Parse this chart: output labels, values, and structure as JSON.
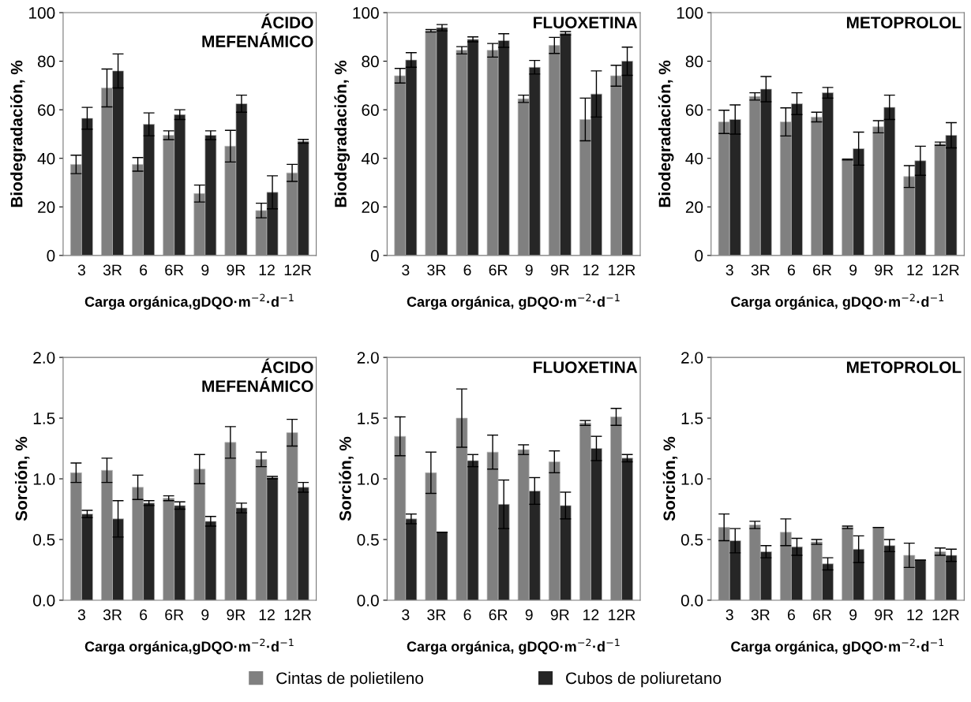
{
  "chart_data": [
    {
      "type": "bar",
      "title": "ÁCIDO\nMEFENÁMICO",
      "ylabel": "Biodegradación, %",
      "xlabel": "Carga orgánica,gDQO·m$^{−2}$·d$^{−1}$",
      "categories": [
        "3",
        "3R",
        "6",
        "6R",
        "9",
        "9R",
        "12",
        "12R"
      ],
      "ylim": [
        0,
        100
      ],
      "yticks": [
        0,
        20,
        40,
        60,
        80,
        100
      ],
      "grid": false,
      "legend": "bottom",
      "series": [
        {
          "name": "Cintas de polietileno",
          "color": "#808080",
          "values": [
            37.5,
            69,
            37.5,
            49.5,
            25.5,
            45,
            18.5,
            34
          ],
          "errors": [
            3.8,
            7.8,
            2.8,
            1.8,
            3.5,
            6.5,
            3,
            3.5
          ]
        },
        {
          "name": "Cubos de poliuretano",
          "color": "#262626",
          "values": [
            56.5,
            76,
            54,
            58,
            49.5,
            62.5,
            26,
            47
          ],
          "errors": [
            4.5,
            7,
            4.7,
            2,
            1.8,
            3.5,
            6.8,
            0.8
          ]
        }
      ]
    },
    {
      "type": "bar",
      "title": "FLUOXETINA",
      "ylabel": "Biodegradación, %",
      "xlabel": "Carga orgánica, gDQO·m$^{−2}$·d$^{−1}$",
      "categories": [
        "3",
        "3R",
        "6",
        "6R",
        "9",
        "9R",
        "12",
        "12R"
      ],
      "ylim": [
        0,
        100
      ],
      "yticks": [
        0,
        20,
        40,
        60,
        80,
        100
      ],
      "grid": false,
      "series": [
        {
          "color": "#808080",
          "values": [
            74,
            92.5,
            84.5,
            84.5,
            64.5,
            86.5,
            56,
            74
          ],
          "errors": [
            3,
            0.5,
            1.5,
            2.8,
            1.5,
            3.3,
            8.8,
            4.3
          ]
        },
        {
          "color": "#262626",
          "values": [
            80.5,
            93.8,
            89,
            88.5,
            77.5,
            91.5,
            66.5,
            80
          ],
          "errors": [
            3,
            1.3,
            1,
            2.8,
            2.8,
            0.7,
            9.5,
            5.8
          ]
        }
      ]
    },
    {
      "type": "bar",
      "title": "METOPROLOL",
      "ylabel": "Biodegradación, %",
      "xlabel": "Carga orgánica, gDQO·m$^{−2}$·d$^{−1}$",
      "categories": [
        "3",
        "3R",
        "6",
        "6R",
        "9",
        "9R",
        "12",
        "12R"
      ],
      "ylim": [
        0,
        100
      ],
      "yticks": [
        0,
        20,
        40,
        60,
        80,
        100
      ],
      "grid": false,
      "series": [
        {
          "color": "#808080",
          "values": [
            55,
            65.5,
            55,
            57,
            39.5,
            53,
            32.5,
            46
          ],
          "errors": [
            4.8,
            1.5,
            5.8,
            2,
            0.2,
            2.5,
            4.5,
            0.7
          ]
        },
        {
          "color": "#262626",
          "values": [
            56,
            68.5,
            62.5,
            67,
            44,
            61,
            39,
            49.5
          ],
          "errors": [
            6,
            5.2,
            4.5,
            2.2,
            6.8,
            5,
            6,
            5.2
          ]
        }
      ]
    },
    {
      "type": "bar",
      "title": "ÁCIDO\nMEFENÁMICO",
      "ylabel": "Sorción, %",
      "xlabel": "Carga orgánica,gDQO·m$^{−2}$·d$^{−1}$",
      "categories": [
        "3",
        "3R",
        "6",
        "6R",
        "9",
        "9R",
        "12",
        "12R"
      ],
      "ylim": [
        0,
        2.0
      ],
      "yticks": [
        {
          "value": 0,
          "label": "0.0"
        },
        {
          "value": 0.5,
          "label": "0.5"
        },
        {
          "value": 1,
          "label": "1.0"
        },
        {
          "value": 1.5,
          "label": "1.5"
        },
        {
          "value": 2,
          "label": "2.0"
        }
      ],
      "grid": false,
      "series": [
        {
          "color": "#808080",
          "values": [
            1.05,
            1.07,
            0.93,
            0.84,
            1.08,
            1.3,
            1.16,
            1.38
          ],
          "errors": [
            0.08,
            0.1,
            0.1,
            0.02,
            0.12,
            0.13,
            0.06,
            0.11
          ]
        },
        {
          "color": "#262626",
          "values": [
            0.71,
            0.67,
            0.8,
            0.78,
            0.65,
            0.76,
            1.01,
            0.93
          ],
          "errors": [
            0.03,
            0.15,
            0.02,
            0.03,
            0.04,
            0.04,
            0.01,
            0.04
          ]
        }
      ]
    },
    {
      "type": "bar",
      "title": "FLUOXETINA",
      "ylabel": "Sorción, %",
      "xlabel": "Carga orgánica, gDQO·m$^{−2}$·d$^{−1}$",
      "categories": [
        "3",
        "3R",
        "6",
        "6R",
        "9",
        "9R",
        "12",
        "12R"
      ],
      "ylim": [
        0,
        2.0
      ],
      "yticks": [
        {
          "value": 0,
          "label": "0.0"
        },
        {
          "value": 0.5,
          "label": "0.5"
        },
        {
          "value": 1,
          "label": "1.0"
        },
        {
          "value": 1.5,
          "label": "1.5"
        },
        {
          "value": 2,
          "label": "2.0"
        }
      ],
      "grid": false,
      "series": [
        {
          "color": "#808080",
          "values": [
            1.35,
            1.05,
            1.5,
            1.22,
            1.24,
            1.14,
            1.46,
            1.51
          ],
          "errors": [
            0.16,
            0.17,
            0.24,
            0.14,
            0.04,
            0.09,
            0.02,
            0.07
          ]
        },
        {
          "color": "#262626",
          "values": [
            0.67,
            0.56,
            1.15,
            0.79,
            0.9,
            0.78,
            1.25,
            1.17
          ],
          "errors": [
            0.04,
            0,
            0.05,
            0.2,
            0.11,
            0.11,
            0.1,
            0.03
          ]
        }
      ]
    },
    {
      "type": "bar",
      "title": "METOPROLOL",
      "ylabel": "Sorción, %",
      "xlabel": "Carga orgánica, gDQO·m$^{−2}$·d$^{−1}$",
      "categories": [
        "3",
        "3R",
        "6",
        "6R",
        "9",
        "9R",
        "12",
        "12R"
      ],
      "ylim": [
        0,
        2.0
      ],
      "yticks": [
        {
          "value": 0,
          "label": "0.0"
        },
        {
          "value": 0.5,
          "label": "0.5"
        },
        {
          "value": 1,
          "label": "1.0"
        },
        {
          "value": 1.5,
          "label": "1.5"
        },
        {
          "value": 2,
          "label": "2.0"
        }
      ],
      "grid": false,
      "series": [
        {
          "color": "#808080",
          "values": [
            0.6,
            0.62,
            0.56,
            0.48,
            0.6,
            0.6,
            0.37,
            0.4
          ],
          "errors": [
            0.11,
            0.03,
            0.11,
            0.02,
            0.01,
            0,
            0.1,
            0.03
          ]
        },
        {
          "color": "#262626",
          "values": [
            0.49,
            0.4,
            0.44,
            0.3,
            0.42,
            0.45,
            0.33,
            0.37
          ],
          "errors": [
            0.1,
            0.05,
            0.07,
            0.05,
            0.11,
            0.05,
            0,
            0.05
          ]
        }
      ]
    }
  ]
}
